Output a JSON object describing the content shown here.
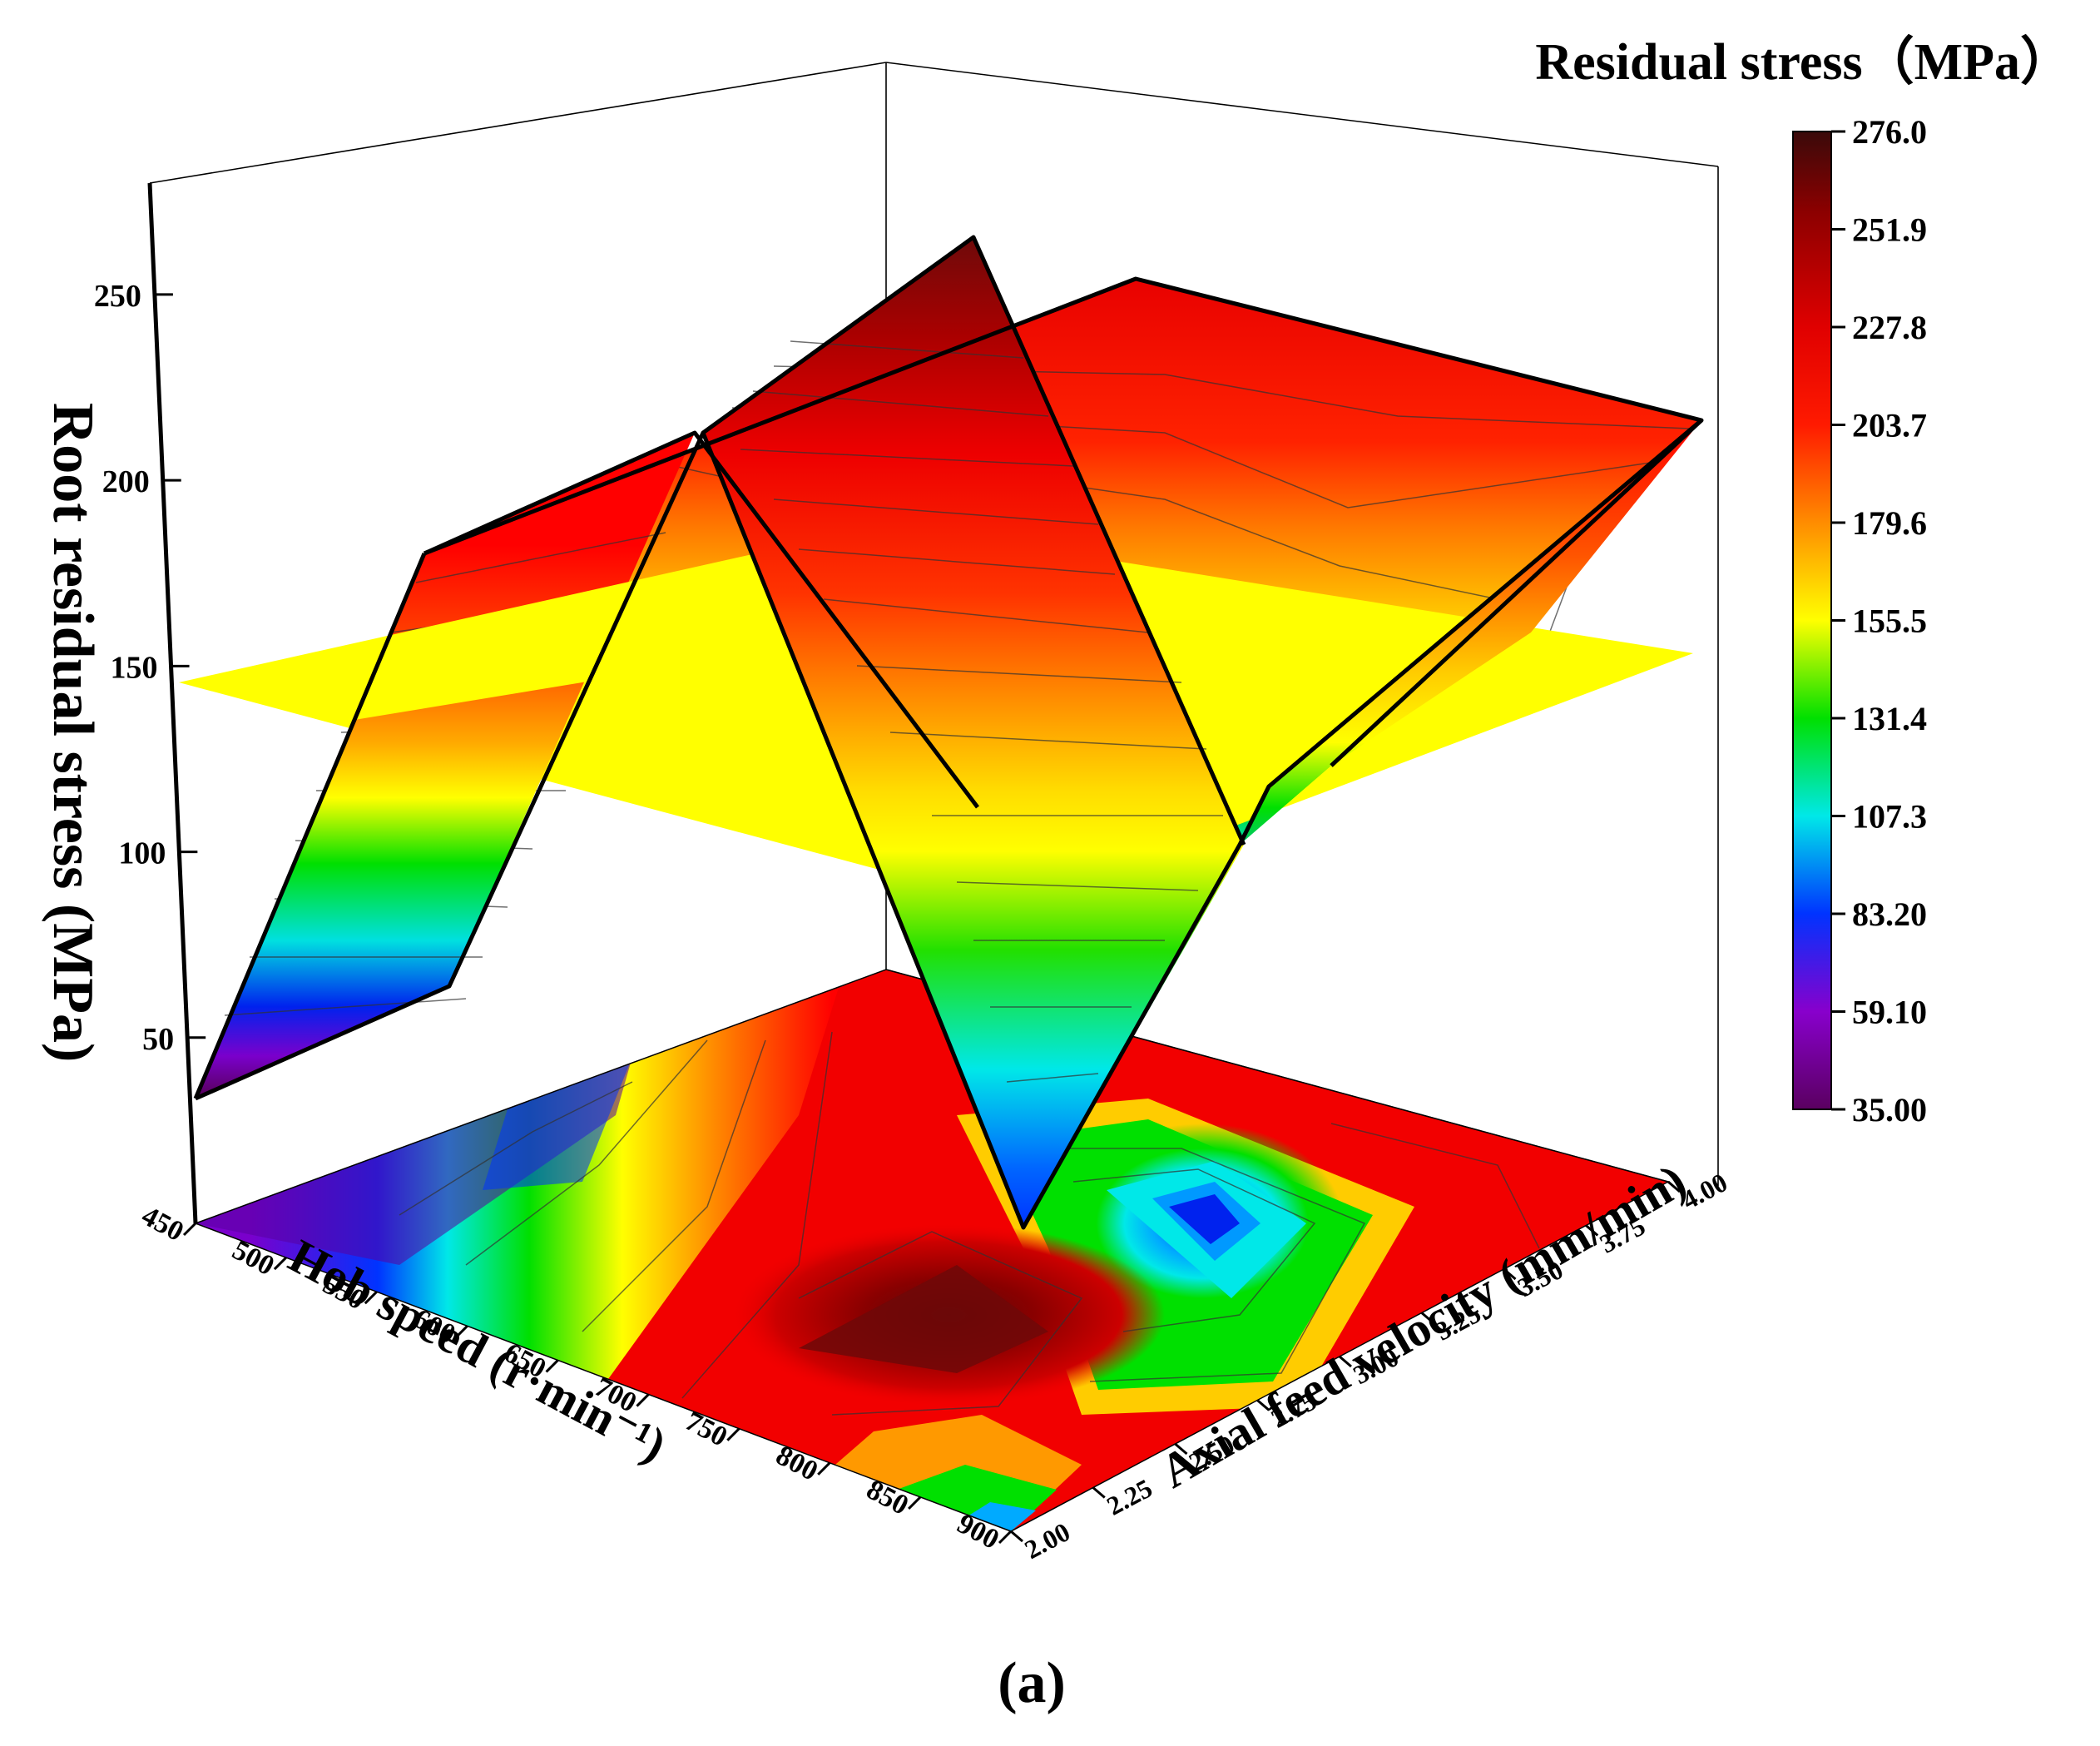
{
  "chart_data": {
    "type": "surface3d",
    "panel_label": "(a)",
    "zlabel": "Root residual stress (MPa)",
    "xlabel": "Hob speed (r·min⁻¹)",
    "ylabel": "Axial feed velocity (mm/min)",
    "colorbar_title": "Residual stress（MPa）",
    "colorbar_ticks": [
      "276.0",
      "251.9",
      "227.8",
      "203.7",
      "179.6",
      "155.5",
      "131.4",
      "107.3",
      "83.20",
      "59.10",
      "35.00"
    ],
    "z_ticks": [
      "250",
      "200",
      "150",
      "100",
      "50"
    ],
    "x_ticks": [
      "450",
      "500",
      "550",
      "600",
      "650",
      "700",
      "750",
      "800",
      "850",
      "900"
    ],
    "y_ticks": [
      "2.00",
      "2.25",
      "2.50",
      "2.75",
      "3.00",
      "3.25",
      "3.50",
      "3.75",
      "4.00"
    ],
    "zlim": [
      0,
      280
    ],
    "xlim": [
      450,
      900
    ],
    "ylim": [
      2.0,
      4.0
    ],
    "threshold_plane_z": 150,
    "colormap": [
      "#3a0a0a",
      "#7a0000",
      "#c00000",
      "#ff0000",
      "#ff5500",
      "#ff9900",
      "#ffff00",
      "#00e000",
      "#00e8e8",
      "#0033ff",
      "#8800cc"
    ],
    "hob_speed": [
      450,
      900
    ],
    "feed_velocity": [
      2.0,
      2.5,
      3.0,
      3.5,
      4.0
    ],
    "residual_stress": [
      [
        40,
        195,
        100,
        210,
        230
      ],
      [
        230,
        275,
        35,
        85,
        235
      ]
    ]
  }
}
